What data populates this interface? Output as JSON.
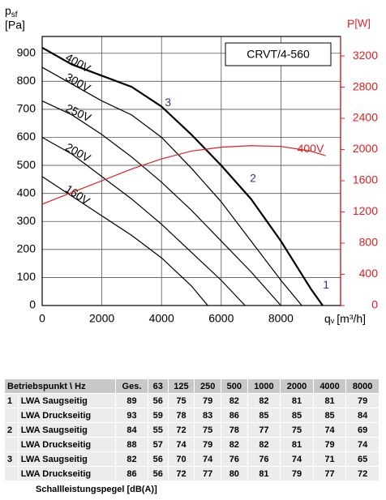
{
  "chart_data": {
    "type": "line",
    "title": "CRVT/4-560",
    "y_label": "p",
    "y_label_sub": "sf",
    "y_unit": "[Pa]",
    "y2_label": "P",
    "y2_unit": "[W]",
    "x_label": "q",
    "x_label_sub": "v",
    "x_unit": "[m³/h]",
    "xlim": [
      0,
      10000
    ],
    "xticks": [
      0,
      2000,
      4000,
      6000,
      8000
    ],
    "ylim": [
      0,
      960
    ],
    "yticks": [
      0,
      100,
      200,
      300,
      400,
      500,
      600,
      700,
      800,
      900
    ],
    "y2lim": [
      0,
      3450
    ],
    "y2ticks": [
      0,
      400,
      800,
      1200,
      1600,
      2000,
      2400,
      2800,
      3200
    ],
    "grid": true,
    "series": [
      {
        "name": "400V",
        "color": "#000000",
        "axis": "y",
        "x": [
          0,
          1000,
          2000,
          3000,
          4000,
          5000,
          6000,
          7000,
          8000,
          9000,
          9400
        ],
        "values": [
          920,
          860,
          820,
          780,
          710,
          610,
          500,
          380,
          230,
          60,
          0
        ]
      },
      {
        "name": "300V",
        "color": "#000000",
        "axis": "y",
        "x": [
          0,
          1000,
          2000,
          3000,
          4000,
          5000,
          6000,
          7000,
          8000,
          8700
        ],
        "values": [
          850,
          790,
          730,
          680,
          600,
          490,
          370,
          230,
          90,
          0
        ]
      },
      {
        "name": "250V",
        "color": "#000000",
        "axis": "y",
        "x": [
          0,
          1000,
          2000,
          3000,
          4000,
          5000,
          6000,
          7000,
          8000
        ],
        "values": [
          730,
          680,
          610,
          530,
          440,
          340,
          230,
          120,
          0
        ]
      },
      {
        "name": "200V",
        "color": "#000000",
        "axis": "y",
        "x": [
          0,
          1000,
          2000,
          3000,
          4000,
          5000,
          6000,
          6800
        ],
        "values": [
          600,
          540,
          460,
          380,
          290,
          190,
          90,
          0
        ]
      },
      {
        "name": "160V",
        "color": "#000000",
        "axis": "y",
        "x": [
          0,
          1000,
          2000,
          3000,
          4000,
          5000,
          5550
        ],
        "values": [
          460,
          390,
          320,
          250,
          170,
          70,
          0
        ]
      },
      {
        "name": "400V",
        "color": "#e02020",
        "axis": "y2",
        "x": [
          0,
          1000,
          2000,
          3000,
          4000,
          5000,
          6000,
          7000,
          8000,
          9000,
          9500
        ],
        "values": [
          1300,
          1450,
          1600,
          1750,
          1880,
          1980,
          2030,
          2050,
          2040,
          1980,
          1920
        ]
      }
    ],
    "operating_points": [
      {
        "label": "3",
        "x": 4000,
        "y": 710
      },
      {
        "label": "2",
        "x": 6850,
        "y": 440
      },
      {
        "label": "1",
        "x": 9300,
        "y": 60
      }
    ]
  },
  "table": {
    "header": [
      "Betriebspunkt \\ Hz",
      "Ges.",
      "63",
      "125",
      "250",
      "500",
      "1000",
      "2000",
      "4000",
      "8000"
    ],
    "rows": [
      {
        "point": "1",
        "label": "LWA Saugseitig",
        "values": [
          89,
          56,
          75,
          79,
          82,
          82,
          81,
          81,
          79
        ]
      },
      {
        "label": "LWA Druckseitig",
        "values": [
          93,
          59,
          78,
          83,
          86,
          85,
          85,
          85,
          84
        ]
      },
      {
        "point": "2",
        "label": "LWA Saugseitig",
        "values": [
          84,
          55,
          72,
          75,
          78,
          77,
          75,
          74,
          69
        ]
      },
      {
        "label": "LWA Druckseitig",
        "values": [
          88,
          57,
          74,
          79,
          82,
          82,
          81,
          79,
          74
        ]
      },
      {
        "point": "3",
        "label": "LWA Saugseitig",
        "values": [
          82,
          56,
          70,
          74,
          76,
          76,
          74,
          71,
          65
        ]
      },
      {
        "label": "LWA Druckseitig",
        "values": [
          86,
          56,
          72,
          77,
          80,
          81,
          79,
          77,
          72
        ]
      }
    ],
    "footnote": "Schallleistungspegel [dB(A)]"
  }
}
